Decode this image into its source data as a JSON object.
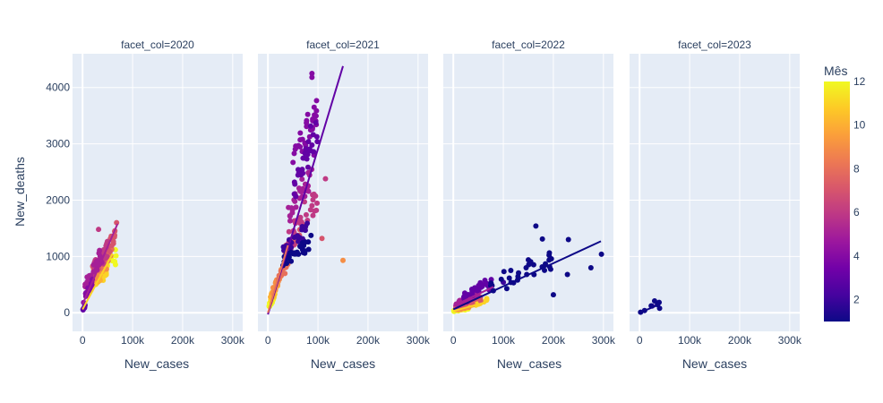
{
  "chart_data": {
    "type": "scatter",
    "facet_titles": [
      "facet_col=2020",
      "facet_col=2021",
      "facet_col=2022",
      "facet_col=2023"
    ],
    "xlabel": "New_cases",
    "ylabel": "New_deaths",
    "x_ticks": [
      {
        "v": 0,
        "label": "0"
      },
      {
        "v": 100000,
        "label": "100k"
      },
      {
        "v": 200000,
        "label": "200k"
      },
      {
        "v": 300000,
        "label": "300k"
      }
    ],
    "y_ticks": [
      {
        "v": 0,
        "label": "0"
      },
      {
        "v": 1000,
        "label": "1000"
      },
      {
        "v": 2000,
        "label": "2000"
      },
      {
        "v": 3000,
        "label": "3000"
      },
      {
        "v": 4000,
        "label": "4000"
      }
    ],
    "xlim": [
      -20000,
      320000
    ],
    "ylim": [
      -330,
      4600
    ],
    "grid": true,
    "colorbar": {
      "title": "Mês",
      "min": 1,
      "max": 12,
      "ticks": [
        {
          "v": 2,
          "label": "2"
        },
        {
          "v": 4,
          "label": "4"
        },
        {
          "v": 6,
          "label": "6"
        },
        {
          "v": 8,
          "label": "8"
        },
        {
          "v": 10,
          "label": "10"
        },
        {
          "v": 12,
          "label": "12"
        }
      ],
      "colorscale": [
        "#0d0887",
        "#46039f",
        "#7201a8",
        "#9c179e",
        "#bd3786",
        "#d8576b",
        "#ed7953",
        "#fb9f3a",
        "#fdca26",
        "#f0f921"
      ]
    },
    "facets": [
      {
        "year": "2020",
        "trendlines": [
          {
            "month": 5,
            "x": [
              0,
              70000
            ],
            "y": [
              150,
              1580
            ]
          },
          {
            "month": 11,
            "x": [
              0,
              60000
            ],
            "y": [
              60,
              1050
            ]
          }
        ],
        "clusters": [
          {
            "month": 3,
            "n": 8,
            "x": [
              0,
              5000
            ],
            "y": [
              0,
              150
            ]
          },
          {
            "month": 4,
            "n": 18,
            "x": [
              2000,
              20000
            ],
            "y": [
              100,
              700
            ]
          },
          {
            "month": 5,
            "n": 30,
            "x": [
              5000,
              40000
            ],
            "y": [
              300,
              1200
            ]
          },
          {
            "month": 6,
            "n": 30,
            "x": [
              15000,
              50000
            ],
            "y": [
              500,
              1350
            ]
          },
          {
            "month": 7,
            "n": 30,
            "x": [
              20000,
              65000
            ],
            "y": [
              600,
              1480
            ]
          },
          {
            "month": 8,
            "n": 30,
            "x": [
              20000,
              60000
            ],
            "y": [
              600,
              1300
            ]
          },
          {
            "month": 9,
            "n": 25,
            "x": [
              15000,
              50000
            ],
            "y": [
              400,
              1100
            ]
          },
          {
            "month": 10,
            "n": 25,
            "x": [
              10000,
              40000
            ],
            "y": [
              300,
              800
            ]
          },
          {
            "month": 11,
            "n": 25,
            "x": [
              15000,
              50000
            ],
            "y": [
              300,
              900
            ]
          },
          {
            "month": 12,
            "n": 30,
            "x": [
              20000,
              70000
            ],
            "y": [
              500,
              1150
            ]
          }
        ],
        "points": [
          {
            "x": 68000,
            "y": 1600,
            "month": 7
          },
          {
            "x": 32000,
            "y": 1480,
            "month": 6
          }
        ]
      },
      {
        "year": "2021",
        "trendlines": [
          {
            "month": 3,
            "x": [
              0,
              150000
            ],
            "y": [
              -30,
              4380
            ]
          },
          {
            "month": 8,
            "x": [
              0,
              40000
            ],
            "y": [
              0,
              1200
            ]
          }
        ],
        "clusters": [
          {
            "month": 1,
            "n": 30,
            "x": [
              30000,
              90000
            ],
            "y": [
              800,
              1400
            ]
          },
          {
            "month": 2,
            "n": 25,
            "x": [
              30000,
              80000
            ],
            "y": [
              1000,
              1600
            ]
          },
          {
            "month": 3,
            "n": 30,
            "x": [
              50000,
              100000
            ],
            "y": [
              1800,
              3600
            ]
          },
          {
            "month": 4,
            "n": 30,
            "x": [
              50000,
              100000
            ],
            "y": [
              2500,
              3900
            ]
          },
          {
            "month": 5,
            "n": 30,
            "x": [
              40000,
              90000
            ],
            "y": [
              1500,
              2700
            ]
          },
          {
            "month": 6,
            "n": 30,
            "x": [
              40000,
              100000
            ],
            "y": [
              1000,
              2400
            ]
          },
          {
            "month": 7,
            "n": 25,
            "x": [
              30000,
              70000
            ],
            "y": [
              900,
              1600
            ]
          },
          {
            "month": 8,
            "n": 20,
            "x": [
              20000,
              40000
            ],
            "y": [
              500,
              1000
            ]
          },
          {
            "month": 9,
            "n": 20,
            "x": [
              10000,
              30000
            ],
            "y": [
              300,
              800
            ]
          },
          {
            "month": 10,
            "n": 20,
            "x": [
              5000,
              20000
            ],
            "y": [
              200,
              600
            ]
          },
          {
            "month": 11,
            "n": 20,
            "x": [
              5000,
              15000
            ],
            "y": [
              150,
              450
            ]
          },
          {
            "month": 12,
            "n": 20,
            "x": [
              2000,
              12000
            ],
            "y": [
              50,
              350
            ]
          }
        ],
        "points": [
          {
            "x": 88000,
            "y": 4250,
            "month": 4
          },
          {
            "x": 88000,
            "y": 4180,
            "month": 4
          },
          {
            "x": 115000,
            "y": 2380,
            "month": 6
          },
          {
            "x": 108000,
            "y": 1320,
            "month": 7
          },
          {
            "x": 150000,
            "y": 930,
            "month": 9
          },
          {
            "x": 92000,
            "y": 2800,
            "month": 4
          }
        ]
      },
      {
        "year": "2022",
        "trendlines": [
          {
            "month": 1,
            "x": [
              0,
              295000
            ],
            "y": [
              60,
              1270
            ]
          },
          {
            "month": 5,
            "x": [
              0,
              80000
            ],
            "y": [
              120,
              460
            ]
          },
          {
            "month": 11,
            "x": [
              0,
              70000
            ],
            "y": [
              30,
              200
            ]
          }
        ],
        "clusters": [
          {
            "month": 1,
            "n": 30,
            "x": [
              60000,
              200000
            ],
            "y": [
              200,
              1200
            ]
          },
          {
            "month": 3,
            "n": 30,
            "x": [
              20000,
              80000
            ],
            "y": [
              200,
              650
            ]
          },
          {
            "month": 5,
            "n": 30,
            "x": [
              5000,
              50000
            ],
            "y": [
              100,
              400
            ]
          },
          {
            "month": 7,
            "n": 30,
            "x": [
              5000,
              60000
            ],
            "y": [
              50,
              350
            ]
          },
          {
            "month": 9,
            "n": 30,
            "x": [
              5000,
              40000
            ],
            "y": [
              20,
              200
            ]
          },
          {
            "month": 11,
            "n": 30,
            "x": [
              5000,
              70000
            ],
            "y": [
              20,
              250
            ]
          },
          {
            "month": 12,
            "n": 25,
            "x": [
              0,
              30000
            ],
            "y": [
              0,
              120
            ]
          }
        ],
        "points": [
          {
            "x": 165000,
            "y": 1540,
            "month": 1
          },
          {
            "x": 178000,
            "y": 1310,
            "month": 1
          },
          {
            "x": 230000,
            "y": 1300,
            "month": 1
          },
          {
            "x": 296000,
            "y": 1040,
            "month": 1
          },
          {
            "x": 275000,
            "y": 800,
            "month": 1
          },
          {
            "x": 228000,
            "y": 680,
            "month": 1
          },
          {
            "x": 200000,
            "y": 320,
            "month": 1
          },
          {
            "x": 150000,
            "y": 940,
            "month": 1
          },
          {
            "x": 100000,
            "y": 540,
            "month": 2
          }
        ]
      },
      {
        "year": "2023",
        "trendlines": [
          {
            "month": 1,
            "x": [
              0,
              40000
            ],
            "y": [
              0,
              150
            ]
          }
        ],
        "clusters": [
          {
            "month": 1,
            "n": 4,
            "x": [
              20000,
              40000
            ],
            "y": [
              80,
              200
            ]
          }
        ],
        "points": [
          {
            "x": 2000,
            "y": 10,
            "month": 1
          },
          {
            "x": 10000,
            "y": 40,
            "month": 1
          },
          {
            "x": 30000,
            "y": 210,
            "month": 1
          },
          {
            "x": 40000,
            "y": 80,
            "month": 1
          },
          {
            "x": 25000,
            "y": 120,
            "month": 2
          }
        ]
      }
    ]
  }
}
